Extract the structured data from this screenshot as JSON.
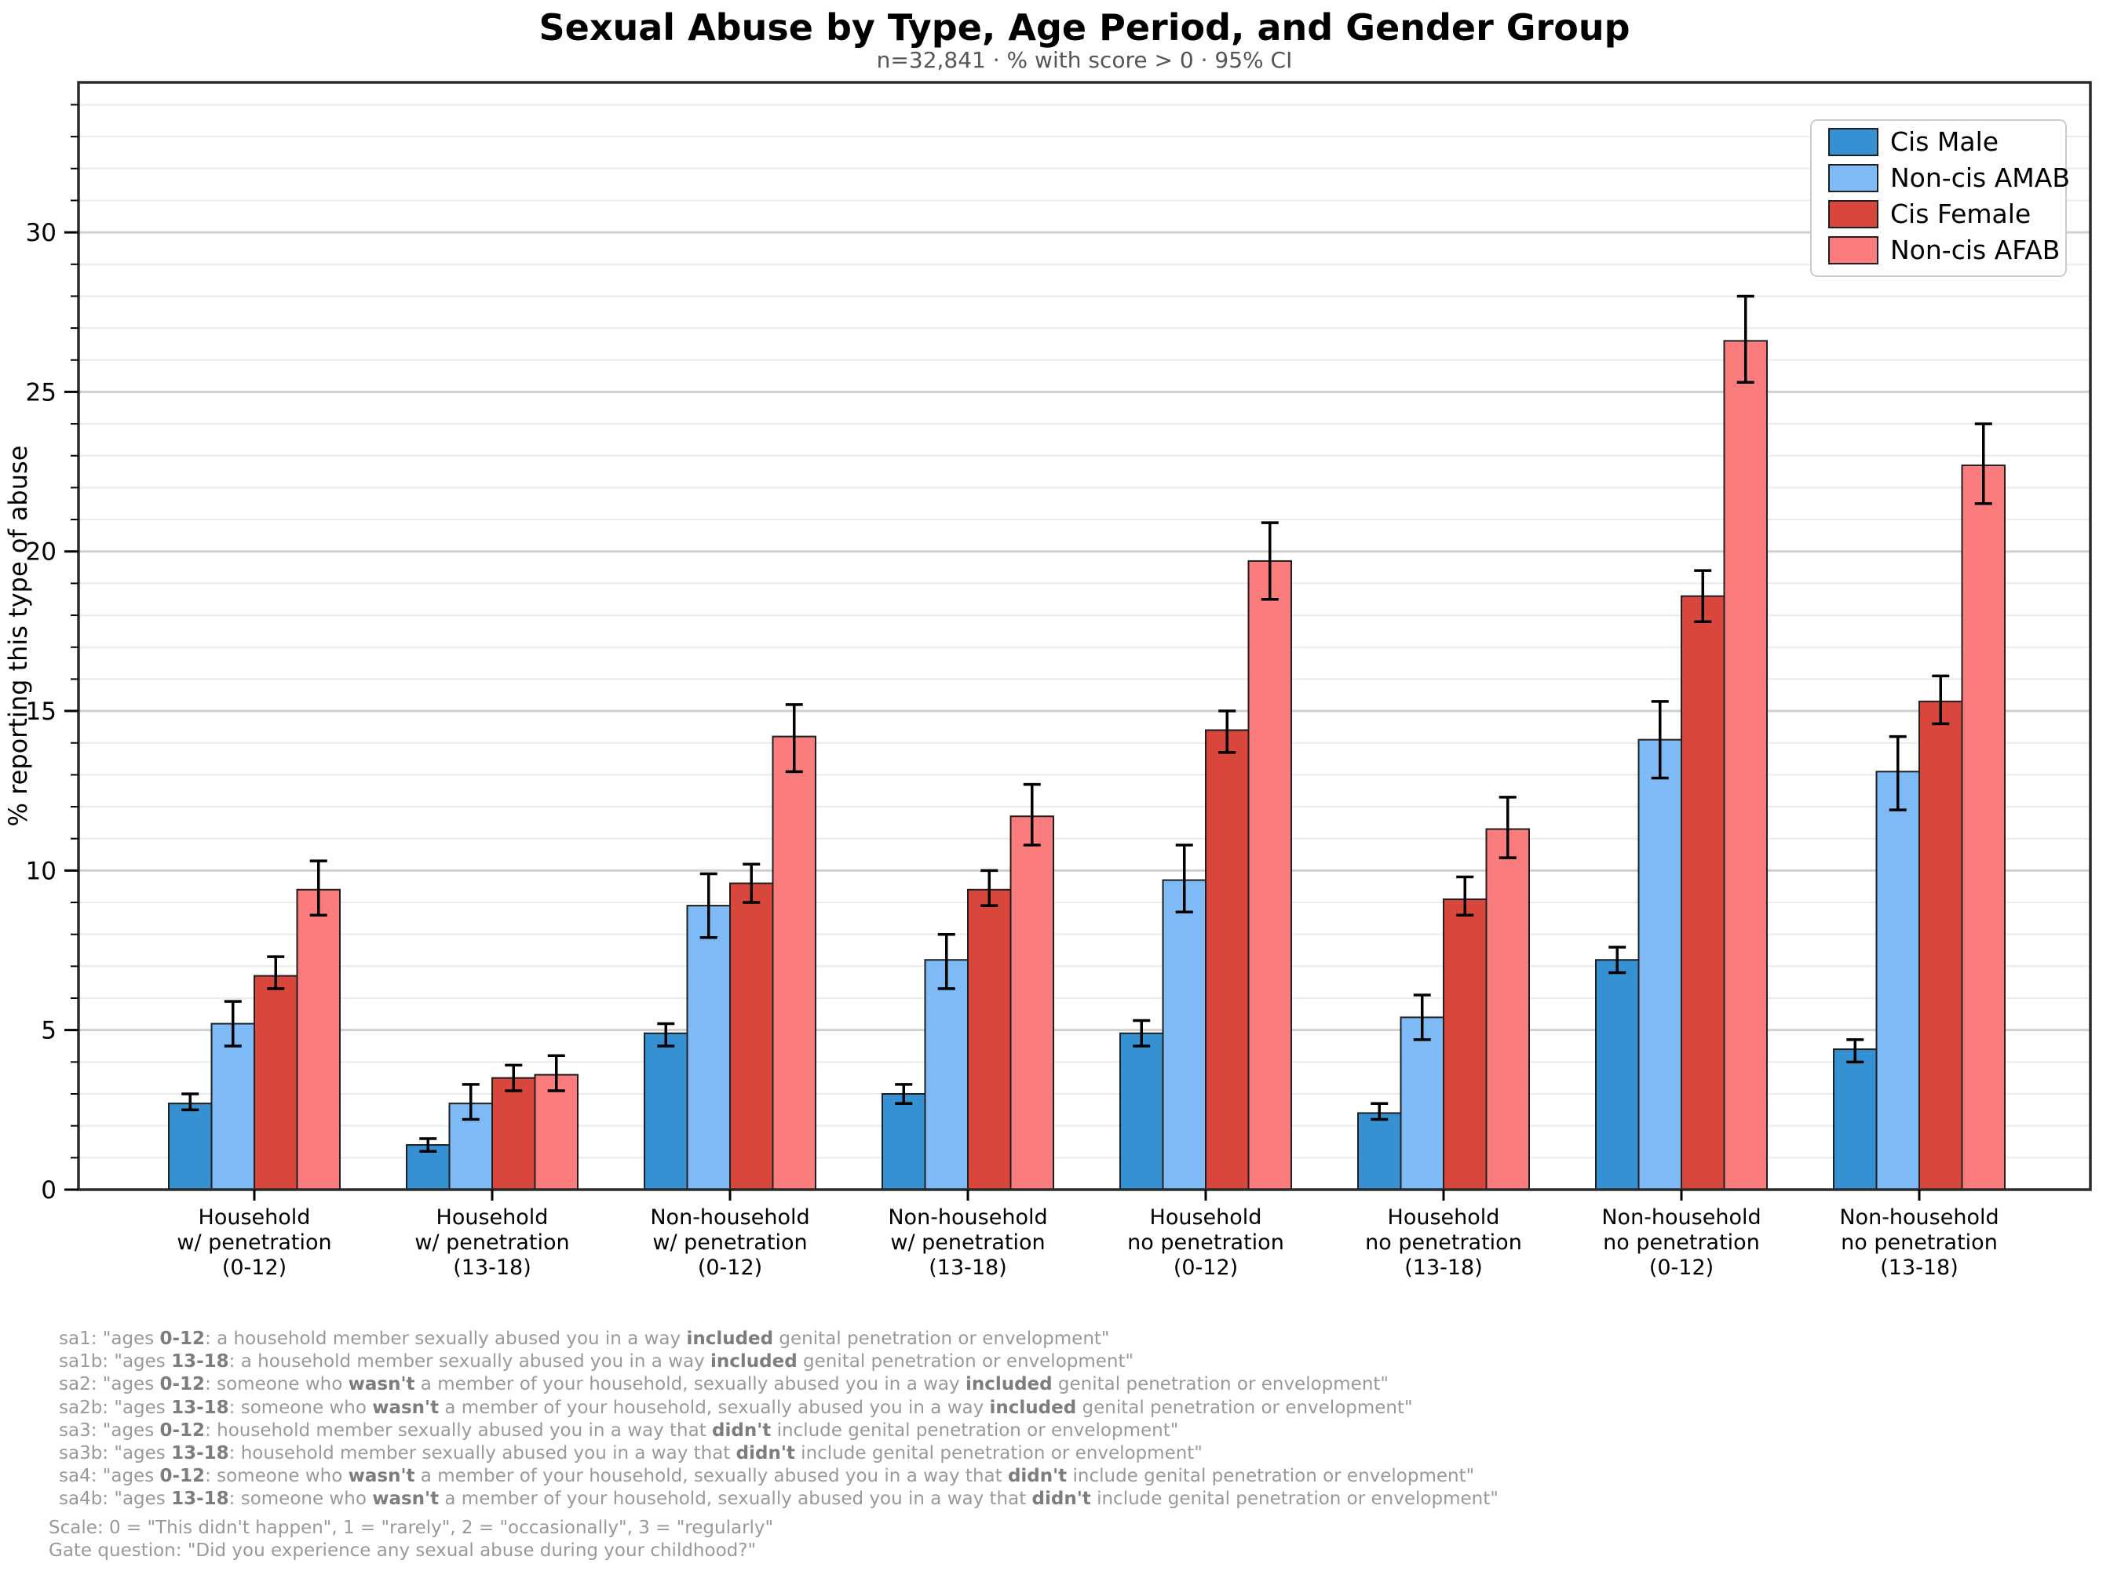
{
  "header": {
    "title": "Sexual Abuse by Type, Age Period, and Gender Group",
    "subtitle": "n=32,841 · % with score > 0 · 95% CI"
  },
  "chart_data": {
    "type": "bar",
    "title": "Sexual Abuse by Type, Age Period, and Gender Group",
    "subtitle": "n=32,841 · % with score > 0 · 95% CI",
    "xlabel": "",
    "ylabel": "% reporting this type of abuse",
    "ylim": [
      0,
      34.7
    ],
    "yticks": [
      0,
      5,
      10,
      15,
      20,
      25,
      30
    ],
    "grid": {
      "orientation": "horizontal",
      "minor_every": 1,
      "major_every": 5
    },
    "legend_position": "upper right",
    "error_bars": "95% CI",
    "categories": [
      [
        "Household",
        "w/ penetration",
        "(0-12)"
      ],
      [
        "Household",
        "w/ penetration",
        "(13-18)"
      ],
      [
        "Non-household",
        "w/ penetration",
        "(0-12)"
      ],
      [
        "Non-household",
        "w/ penetration",
        "(13-18)"
      ],
      [
        "Household",
        "no penetration",
        "(0-12)"
      ],
      [
        "Household",
        "no penetration",
        "(13-18)"
      ],
      [
        "Non-household",
        "no penetration",
        "(0-12)"
      ],
      [
        "Non-household",
        "no penetration",
        "(13-18)"
      ]
    ],
    "series": [
      {
        "name": "Cis Male",
        "color": "#3591D1",
        "values": [
          2.7,
          1.4,
          4.9,
          3.0,
          4.9,
          2.4,
          7.2,
          4.4
        ],
        "ci_low": [
          2.5,
          1.2,
          4.5,
          2.7,
          4.5,
          2.2,
          6.8,
          4.0
        ],
        "ci_high": [
          3.0,
          1.6,
          5.2,
          3.3,
          5.3,
          2.7,
          7.6,
          4.7
        ]
      },
      {
        "name": "Non-cis AMAB",
        "color": "#7EBAF5",
        "values": [
          5.2,
          2.7,
          8.9,
          7.2,
          9.7,
          5.4,
          14.1,
          13.1
        ],
        "ci_low": [
          4.5,
          2.2,
          7.9,
          6.3,
          8.7,
          4.7,
          12.9,
          11.9
        ],
        "ci_high": [
          5.9,
          3.3,
          9.9,
          8.0,
          10.8,
          6.1,
          15.3,
          14.2
        ]
      },
      {
        "name": "Cis Female",
        "color": "#D9463C",
        "values": [
          6.7,
          3.5,
          9.6,
          9.4,
          14.4,
          9.1,
          18.6,
          15.3
        ],
        "ci_low": [
          6.3,
          3.1,
          9.0,
          8.9,
          13.7,
          8.6,
          17.8,
          14.6
        ],
        "ci_high": [
          7.3,
          3.9,
          10.2,
          10.0,
          15.0,
          9.8,
          19.4,
          16.1
        ]
      },
      {
        "name": "Non-cis AFAB",
        "color": "#FB7C7C",
        "values": [
          9.4,
          3.6,
          14.2,
          11.7,
          19.7,
          11.3,
          26.6,
          22.7
        ],
        "ci_low": [
          8.6,
          3.1,
          13.1,
          10.8,
          18.5,
          10.4,
          25.3,
          21.5
        ],
        "ci_high": [
          10.3,
          4.2,
          15.2,
          12.7,
          20.9,
          12.3,
          28.0,
          24.0
        ]
      }
    ]
  },
  "footnotes": {
    "lines": [
      {
        "indent": true,
        "gap": false,
        "segments": [
          {
            "t": "sa1: \"ages ",
            "b": false
          },
          {
            "t": "0-12",
            "b": true
          },
          {
            "t": ": a household member sexually abused you in a way ",
            "b": false
          },
          {
            "t": "included",
            "b": true
          },
          {
            "t": " genital penetration or envelopment\"",
            "b": false
          }
        ]
      },
      {
        "indent": true,
        "gap": false,
        "segments": [
          {
            "t": "sa1b: \"ages ",
            "b": false
          },
          {
            "t": "13-18",
            "b": true
          },
          {
            "t": ": a household member sexually abused you in a way ",
            "b": false
          },
          {
            "t": "included",
            "b": true
          },
          {
            "t": " genital penetration or envelopment\"",
            "b": false
          }
        ]
      },
      {
        "indent": true,
        "gap": false,
        "segments": [
          {
            "t": "sa2: \"ages ",
            "b": false
          },
          {
            "t": "0-12",
            "b": true
          },
          {
            "t": ": someone who ",
            "b": false
          },
          {
            "t": "wasn't",
            "b": true
          },
          {
            "t": " a member of your household, sexually abused you in a way ",
            "b": false
          },
          {
            "t": "included",
            "b": true
          },
          {
            "t": " genital penetration or envelopment\"",
            "b": false
          }
        ]
      },
      {
        "indent": true,
        "gap": false,
        "segments": [
          {
            "t": "sa2b: \"ages ",
            "b": false
          },
          {
            "t": "13-18",
            "b": true
          },
          {
            "t": ": someone who ",
            "b": false
          },
          {
            "t": "wasn't",
            "b": true
          },
          {
            "t": " a member of your household, sexually abused you in a way ",
            "b": false
          },
          {
            "t": "included",
            "b": true
          },
          {
            "t": " genital penetration or envelopment\"",
            "b": false
          }
        ]
      },
      {
        "indent": true,
        "gap": false,
        "segments": [
          {
            "t": "sa3: \"ages ",
            "b": false
          },
          {
            "t": "0-12",
            "b": true
          },
          {
            "t": ": household member sexually abused you in a way that ",
            "b": false
          },
          {
            "t": "didn't",
            "b": true
          },
          {
            "t": " include genital penetration or envelopment\"",
            "b": false
          }
        ]
      },
      {
        "indent": true,
        "gap": false,
        "segments": [
          {
            "t": "sa3b: \"ages ",
            "b": false
          },
          {
            "t": "13-18",
            "b": true
          },
          {
            "t": ": household member sexually abused you in a way that ",
            "b": false
          },
          {
            "t": "didn't",
            "b": true
          },
          {
            "t": " include genital penetration or envelopment\"",
            "b": false
          }
        ]
      },
      {
        "indent": true,
        "gap": false,
        "segments": [
          {
            "t": "sa4: \"ages ",
            "b": false
          },
          {
            "t": "0-12",
            "b": true
          },
          {
            "t": ": someone who ",
            "b": false
          },
          {
            "t": "wasn't",
            "b": true
          },
          {
            "t": " a member of your household, sexually abused you in a way that ",
            "b": false
          },
          {
            "t": "didn't",
            "b": true
          },
          {
            "t": " include genital penetration or envelopment\"",
            "b": false
          }
        ]
      },
      {
        "indent": true,
        "gap": false,
        "segments": [
          {
            "t": "sa4b: \"ages ",
            "b": false
          },
          {
            "t": "13-18",
            "b": true
          },
          {
            "t": ": someone who ",
            "b": false
          },
          {
            "t": "wasn't",
            "b": true
          },
          {
            "t": " a member of your household, sexually abused you in a way that ",
            "b": false
          },
          {
            "t": "didn't",
            "b": true
          },
          {
            "t": " include genital penetration or envelopment\"",
            "b": false
          }
        ]
      },
      {
        "indent": false,
        "gap": true,
        "segments": [
          {
            "t": "Scale: 0 = \"This didn't happen\", 1 = \"rarely\", 2 = \"occasionally\", 3 = \"regularly\"",
            "b": false
          }
        ]
      },
      {
        "indent": false,
        "gap": false,
        "segments": [
          {
            "t": "Gate question: \"Did you experience any sexual abuse during your childhood?\"",
            "b": false
          }
        ]
      }
    ]
  },
  "style_colors": {
    "bar_edge": "#1f1f1f",
    "spine": "#2b2b2b",
    "grid_minor": "#ebebeb",
    "grid_major": "#d0d0d0",
    "legend_border": "#cccccc",
    "subtitle_gray": "#555555",
    "footnote_gray": "#999999"
  }
}
